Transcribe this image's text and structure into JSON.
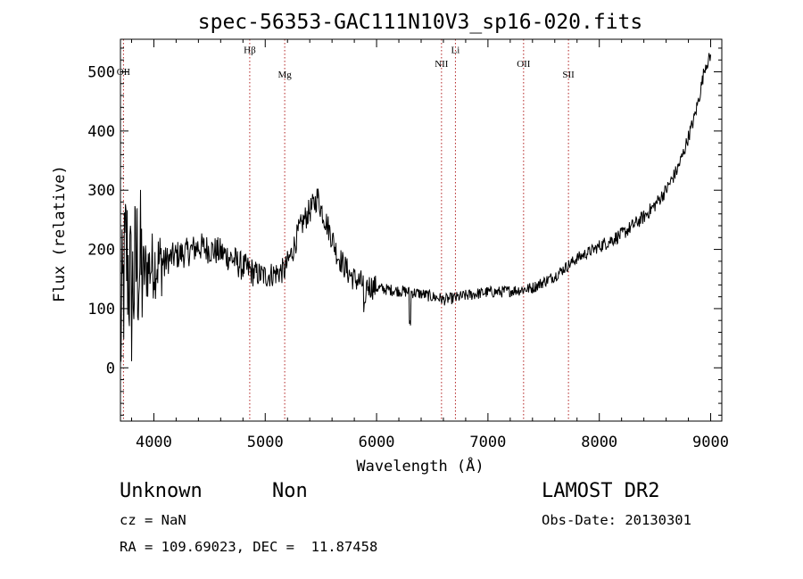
{
  "chart_data": {
    "type": "line",
    "title": "spec-56353-GAC111N10V3_sp16-020.fits",
    "xlabel": "Wavelength (Å)",
    "ylabel": "Flux (relative)",
    "xlim": [
      3700,
      9100
    ],
    "ylim": [
      -90,
      555
    ],
    "xticks": [
      4000,
      5000,
      6000,
      7000,
      8000,
      9000
    ],
    "yticks": [
      0,
      100,
      200,
      300,
      400,
      500
    ],
    "grid": false,
    "series": [
      {
        "x": [
          3700,
          3750,
          3800,
          3850,
          3900,
          3950,
          4000,
          4100,
          4200,
          4300,
          4400,
          4500,
          4600,
          4700,
          4800,
          4861,
          4900,
          5000,
          5100,
          5175,
          5250,
          5300,
          5350,
          5400,
          5450,
          5470,
          5500,
          5550,
          5600,
          5650,
          5700,
          5750,
          5800,
          5900,
          6000,
          6100,
          6200,
          6300,
          6400,
          6500,
          6563,
          6600,
          6700,
          6800,
          6900,
          7000,
          7100,
          7200,
          7300,
          7400,
          7500,
          7600,
          7700,
          7800,
          7900,
          8000,
          8100,
          8200,
          8300,
          8400,
          8500,
          8600,
          8700,
          8750,
          8800,
          8850,
          8900,
          8950,
          9000
        ],
        "y": [
          50,
          200,
          120,
          180,
          160,
          170,
          175,
          180,
          190,
          195,
          205,
          200,
          195,
          185,
          170,
          165,
          160,
          155,
          160,
          165,
          200,
          230,
          250,
          265,
          280,
          290,
          270,
          245,
          220,
          190,
          175,
          160,
          150,
          140,
          135,
          132,
          130,
          128,
          125,
          120,
          118,
          115,
          118,
          122,
          125,
          128,
          128,
          130,
          132,
          135,
          145,
          155,
          170,
          185,
          195,
          205,
          215,
          225,
          240,
          255,
          275,
          300,
          335,
          360,
          390,
          420,
          460,
          510,
          525
        ]
      }
    ],
    "spectral_lines": [
      {
        "label": "OII",
        "x": 3727,
        "label_y": 495
      },
      {
        "label": "Hβ",
        "x": 4861,
        "label_y": 532
      },
      {
        "label": "Mg",
        "x": 5175,
        "label_y": 490
      },
      {
        "label": "NII",
        "x": 6583,
        "label_y": 508
      },
      {
        "label": "Li",
        "x": 6708,
        "label_y": 532
      },
      {
        "label": "OII",
        "x": 7320,
        "label_y": 508
      },
      {
        "label": "SII",
        "x": 7723,
        "label_y": 490
      }
    ]
  },
  "info": {
    "class": "Unknown",
    "subclass": "Non",
    "survey": "LAMOST DR2",
    "cz": "cz = NaN",
    "obs_date": "Obs-Date: 20130301",
    "coords": "RA = 109.69023, DEC =  11.87458"
  },
  "colors": {
    "spectrum": "#000000",
    "line_markers": "#b22222"
  }
}
